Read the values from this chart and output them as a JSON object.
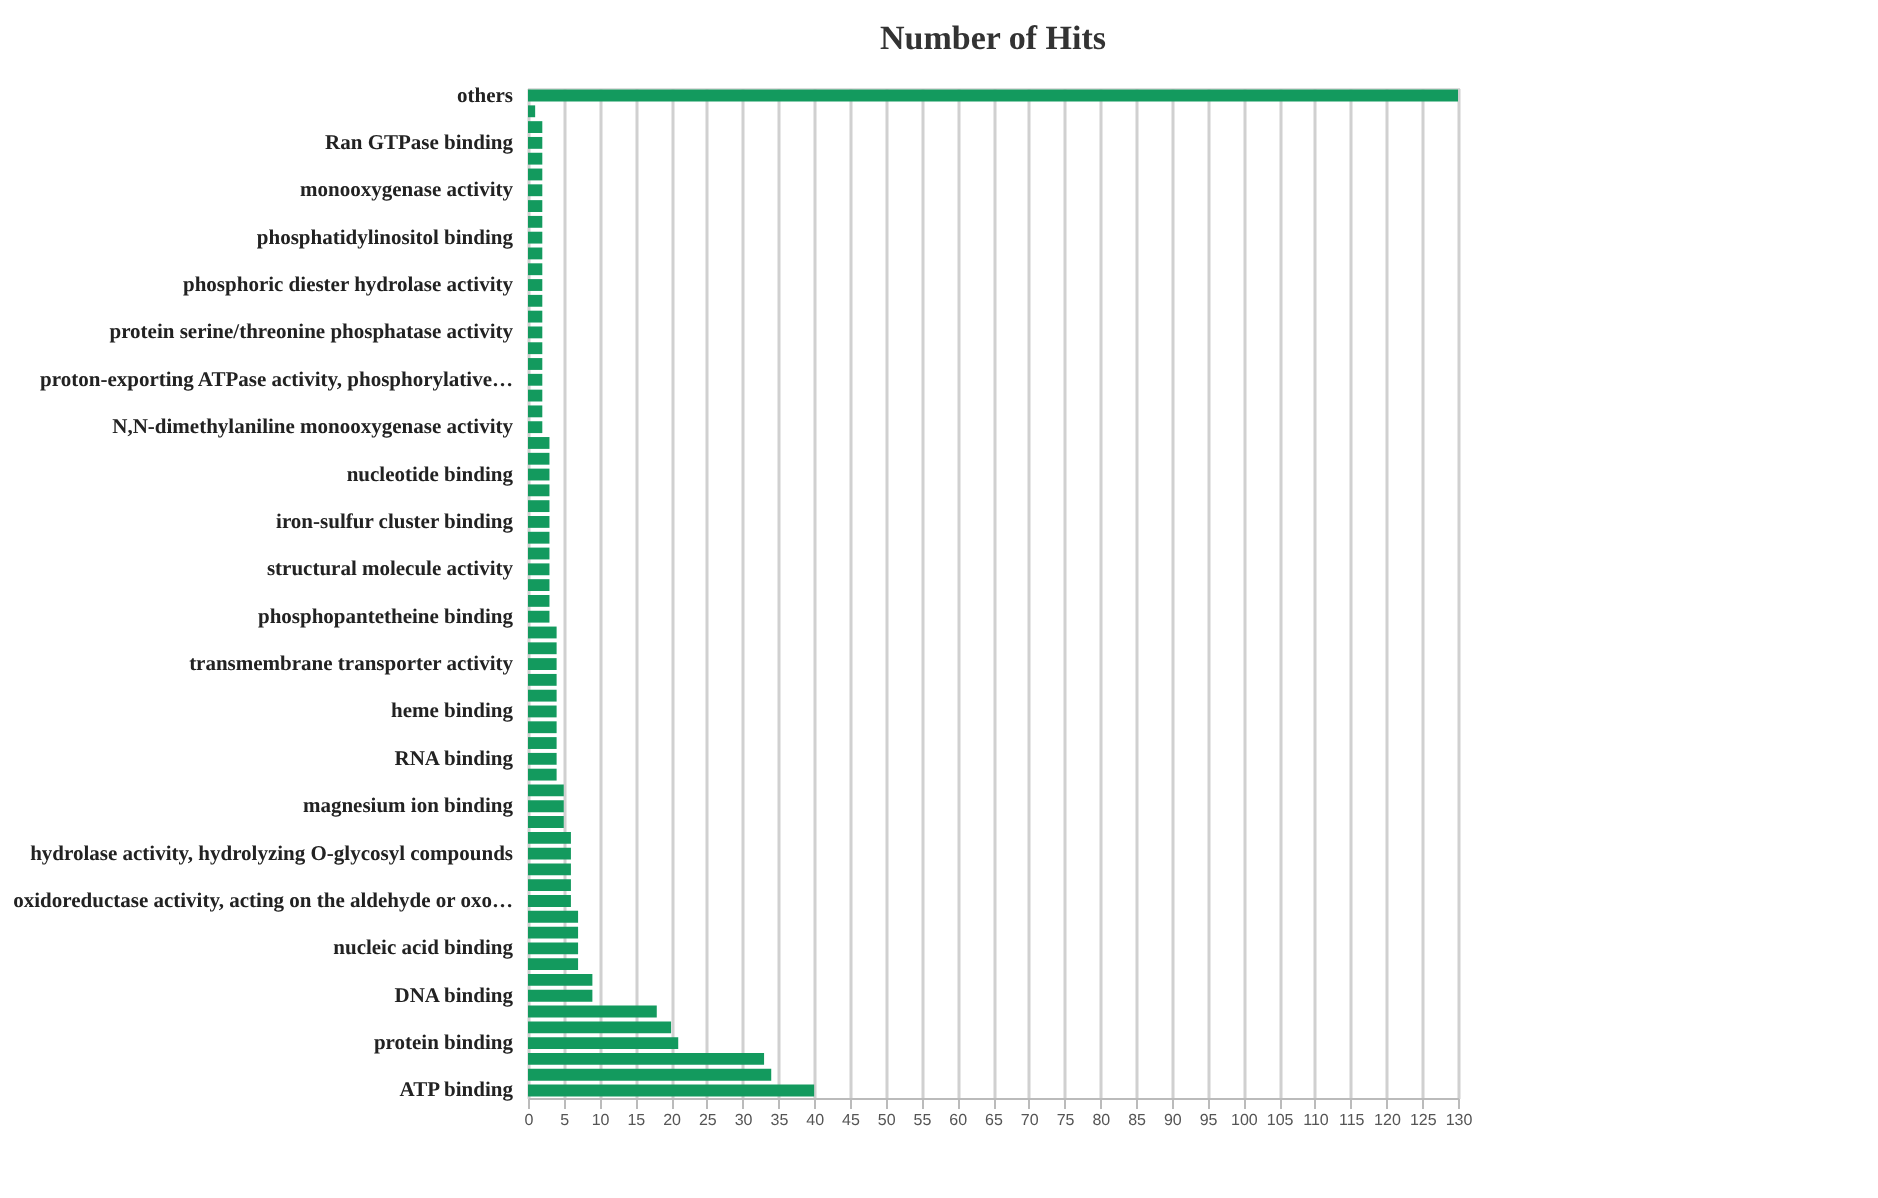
{
  "chart_data": {
    "type": "bar",
    "orientation": "horizontal",
    "title": "Number of Hits",
    "categories": [
      "others",
      null,
      null,
      "Ran GTPase binding",
      null,
      null,
      "monooxygenase activity",
      null,
      null,
      "phosphatidylinositol binding",
      null,
      null,
      "phosphoric diester hydrolase activity",
      null,
      null,
      "protein serine/threonine phosphatase activity",
      null,
      null,
      "proton-exporting ATPase activity, phosphorylative…",
      null,
      null,
      "N,N-dimethylaniline monooxygenase activity",
      null,
      null,
      "nucleotide binding",
      null,
      null,
      "iron-sulfur cluster binding",
      null,
      null,
      "structural molecule activity",
      null,
      null,
      "phosphopantetheine binding",
      null,
      null,
      "transmembrane transporter activity",
      null,
      null,
      "heme binding",
      null,
      null,
      "RNA binding",
      null,
      null,
      "magnesium ion binding",
      null,
      null,
      "hydrolase activity, hydrolyzing O-glycosyl compounds",
      null,
      null,
      "oxidoreductase activity, acting on the aldehyde or oxo…",
      null,
      null,
      "nucleic acid binding",
      null,
      null,
      "DNA binding",
      null,
      null,
      "protein binding",
      null,
      null,
      "ATP binding"
    ],
    "values": [
      130,
      1,
      2,
      2,
      2,
      2,
      2,
      2,
      2,
      2,
      2,
      2,
      2,
      2,
      2,
      2,
      2,
      2,
      2,
      2,
      2,
      2,
      3,
      3,
      3,
      3,
      3,
      3,
      3,
      3,
      3,
      3,
      3,
      3,
      4,
      4,
      4,
      4,
      4,
      4,
      4,
      4,
      4,
      4,
      5,
      5,
      5,
      6,
      6,
      6,
      6,
      6,
      7,
      7,
      7,
      7,
      9,
      9,
      18,
      20,
      21,
      33,
      34,
      40
    ],
    "color": "#139a5e",
    "xlim": [
      0,
      130
    ],
    "xticks": [
      0,
      5,
      10,
      15,
      20,
      25,
      30,
      35,
      40,
      45,
      50,
      55,
      60,
      65,
      70,
      75,
      80,
      85,
      90,
      95,
      100,
      105,
      110,
      115,
      120,
      125,
      130
    ],
    "grid": "x"
  }
}
